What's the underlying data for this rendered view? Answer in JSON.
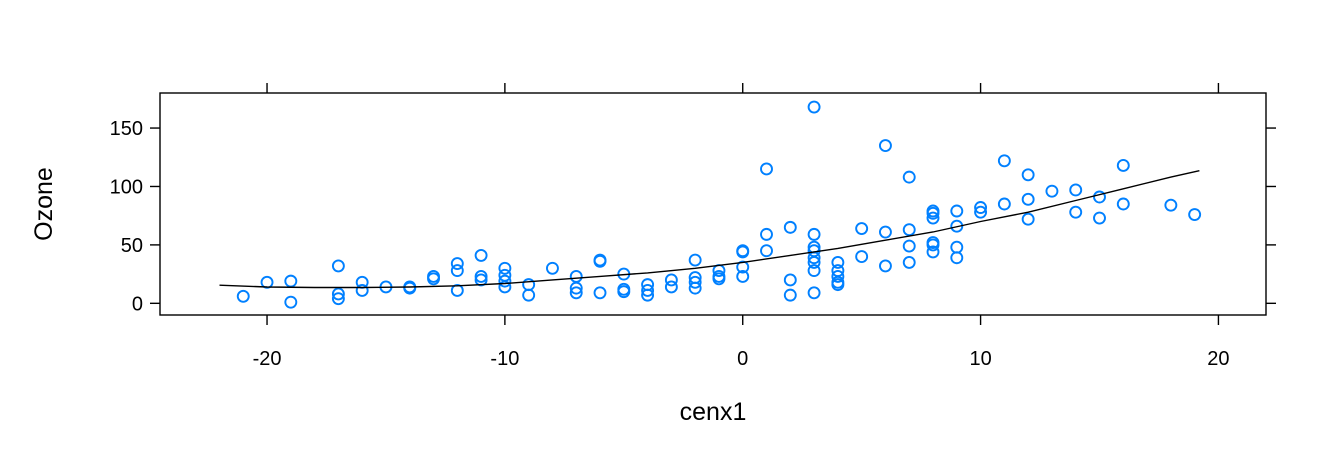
{
  "chart_data": {
    "type": "scatter",
    "xlabel": "cenx1",
    "ylabel": "Ozone",
    "xlim": [
      -24.5,
      22
    ],
    "ylim": [
      -10,
      180
    ],
    "x_ticks": [
      -20,
      -10,
      0,
      10,
      20
    ],
    "y_ticks": [
      0,
      50,
      100,
      150
    ],
    "grid": false,
    "point_color": "#0080ff",
    "line_color": "#000000",
    "points": [
      {
        "x": -21,
        "y": 6
      },
      {
        "x": -20,
        "y": 18
      },
      {
        "x": -19,
        "y": 19
      },
      {
        "x": -19,
        "y": 1
      },
      {
        "x": -17,
        "y": 32
      },
      {
        "x": -17,
        "y": 8
      },
      {
        "x": -17,
        "y": 4
      },
      {
        "x": -16,
        "y": 18
      },
      {
        "x": -16,
        "y": 11
      },
      {
        "x": -15,
        "y": 14
      },
      {
        "x": -14,
        "y": 14
      },
      {
        "x": -14,
        "y": 13
      },
      {
        "x": -13,
        "y": 23
      },
      {
        "x": -13,
        "y": 21
      },
      {
        "x": -12,
        "y": 34
      },
      {
        "x": -12,
        "y": 28
      },
      {
        "x": -12,
        "y": 11
      },
      {
        "x": -11,
        "y": 41
      },
      {
        "x": -11,
        "y": 23
      },
      {
        "x": -11,
        "y": 20
      },
      {
        "x": -10,
        "y": 30
      },
      {
        "x": -10,
        "y": 24
      },
      {
        "x": -10,
        "y": 19
      },
      {
        "x": -10,
        "y": 14
      },
      {
        "x": -9,
        "y": 16
      },
      {
        "x": -9,
        "y": 7
      },
      {
        "x": -8,
        "y": 30
      },
      {
        "x": -7,
        "y": 23
      },
      {
        "x": -7,
        "y": 13
      },
      {
        "x": -7,
        "y": 9
      },
      {
        "x": -6,
        "y": 37
      },
      {
        "x": -6,
        "y": 36
      },
      {
        "x": -6,
        "y": 9
      },
      {
        "x": -5,
        "y": 25
      },
      {
        "x": -5,
        "y": 12
      },
      {
        "x": -5,
        "y": 10
      },
      {
        "x": -4,
        "y": 16
      },
      {
        "x": -4,
        "y": 11
      },
      {
        "x": -4,
        "y": 7
      },
      {
        "x": -3,
        "y": 20
      },
      {
        "x": -3,
        "y": 14
      },
      {
        "x": -2,
        "y": 37
      },
      {
        "x": -2,
        "y": 22
      },
      {
        "x": -2,
        "y": 18
      },
      {
        "x": -2,
        "y": 13
      },
      {
        "x": -1,
        "y": 28
      },
      {
        "x": -1,
        "y": 23
      },
      {
        "x": -1,
        "y": 21
      },
      {
        "x": 0,
        "y": 45
      },
      {
        "x": 0,
        "y": 44
      },
      {
        "x": 0,
        "y": 31
      },
      {
        "x": 0,
        "y": 23
      },
      {
        "x": 1,
        "y": 115
      },
      {
        "x": 1,
        "y": 59
      },
      {
        "x": 1,
        "y": 45
      },
      {
        "x": 2,
        "y": 65
      },
      {
        "x": 2,
        "y": 20
      },
      {
        "x": 2,
        "y": 7
      },
      {
        "x": 3,
        "y": 168
      },
      {
        "x": 3,
        "y": 59
      },
      {
        "x": 3,
        "y": 48
      },
      {
        "x": 3,
        "y": 45
      },
      {
        "x": 3,
        "y": 39
      },
      {
        "x": 3,
        "y": 35
      },
      {
        "x": 3,
        "y": 28
      },
      {
        "x": 3,
        "y": 9
      },
      {
        "x": 4,
        "y": 35
      },
      {
        "x": 4,
        "y": 28
      },
      {
        "x": 4,
        "y": 23
      },
      {
        "x": 4,
        "y": 18
      },
      {
        "x": 4,
        "y": 16
      },
      {
        "x": 5,
        "y": 64
      },
      {
        "x": 5,
        "y": 40
      },
      {
        "x": 6,
        "y": 135
      },
      {
        "x": 6,
        "y": 61
      },
      {
        "x": 6,
        "y": 32
      },
      {
        "x": 7,
        "y": 108
      },
      {
        "x": 7,
        "y": 63
      },
      {
        "x": 7,
        "y": 49
      },
      {
        "x": 7,
        "y": 35
      },
      {
        "x": 8,
        "y": 79
      },
      {
        "x": 8,
        "y": 77
      },
      {
        "x": 8,
        "y": 73
      },
      {
        "x": 8,
        "y": 52
      },
      {
        "x": 8,
        "y": 50
      },
      {
        "x": 8,
        "y": 44
      },
      {
        "x": 9,
        "y": 79
      },
      {
        "x": 9,
        "y": 66
      },
      {
        "x": 9,
        "y": 48
      },
      {
        "x": 9,
        "y": 39
      },
      {
        "x": 10,
        "y": 82
      },
      {
        "x": 10,
        "y": 78
      },
      {
        "x": 11,
        "y": 122
      },
      {
        "x": 11,
        "y": 85
      },
      {
        "x": 12,
        "y": 110
      },
      {
        "x": 12,
        "y": 89
      },
      {
        "x": 12,
        "y": 72
      },
      {
        "x": 13,
        "y": 96
      },
      {
        "x": 14,
        "y": 97
      },
      {
        "x": 14,
        "y": 78
      },
      {
        "x": 15,
        "y": 91
      },
      {
        "x": 15,
        "y": 73
      },
      {
        "x": 16,
        "y": 118
      },
      {
        "x": 16,
        "y": 85
      },
      {
        "x": 18,
        "y": 84
      },
      {
        "x": 19,
        "y": 76
      }
    ],
    "fit_line": {
      "x": [
        -22,
        -20,
        -18,
        -16,
        -14,
        -12,
        -10,
        -8,
        -6,
        -4,
        -2,
        0,
        2,
        4,
        6,
        8,
        10,
        12,
        14,
        16,
        18,
        19.2
      ],
      "y": [
        15.5,
        14,
        13.5,
        13.5,
        14,
        15,
        17,
        20,
        23,
        26,
        30,
        35,
        41,
        47,
        54,
        61,
        70,
        78,
        88,
        98,
        108,
        113.5
      ]
    }
  }
}
